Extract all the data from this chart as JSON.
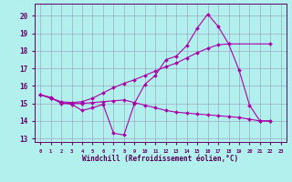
{
  "xlabel": "Windchill (Refroidissement éolien,°C)",
  "xlim": [
    -0.5,
    23.5
  ],
  "ylim": [
    12.8,
    20.7
  ],
  "yticks": [
    13,
    14,
    15,
    16,
    17,
    18,
    19,
    20
  ],
  "xticks": [
    0,
    1,
    2,
    3,
    4,
    5,
    6,
    7,
    8,
    9,
    10,
    11,
    12,
    13,
    14,
    15,
    16,
    17,
    18,
    19,
    20,
    21,
    22,
    23
  ],
  "bg_color": "#b2f0ee",
  "line_color": "#aa00aa",
  "grid_color": "#9999bb",
  "line1_x": [
    0,
    1,
    2,
    3,
    4,
    5,
    6,
    7,
    8,
    9,
    10,
    11,
    12,
    13,
    14,
    15,
    16,
    17,
    18,
    19,
    20,
    21,
    22
  ],
  "line1_y": [
    15.5,
    15.3,
    15.05,
    14.95,
    14.6,
    14.75,
    14.95,
    13.3,
    13.2,
    15.0,
    16.1,
    16.6,
    17.5,
    17.7,
    18.3,
    19.3,
    20.1,
    19.4,
    18.4,
    16.9,
    14.9,
    14.0,
    14.0
  ],
  "line2_x": [
    0,
    1,
    2,
    3,
    4,
    5,
    6,
    7,
    8,
    9,
    10,
    11,
    12,
    13,
    14,
    15,
    16,
    17,
    18,
    22
  ],
  "line2_y": [
    15.5,
    15.3,
    15.1,
    15.05,
    15.1,
    15.3,
    15.6,
    15.9,
    16.15,
    16.35,
    16.6,
    16.85,
    17.1,
    17.3,
    17.6,
    17.9,
    18.15,
    18.35,
    18.4,
    18.4
  ],
  "line3_x": [
    0,
    1,
    2,
    3,
    4,
    5,
    6,
    7,
    8,
    9,
    10,
    11,
    12,
    13,
    14,
    15,
    16,
    17,
    18,
    19,
    20,
    21,
    22
  ],
  "line3_y": [
    15.5,
    15.35,
    15.0,
    15.0,
    15.0,
    15.05,
    15.1,
    15.15,
    15.2,
    15.05,
    14.9,
    14.75,
    14.6,
    14.5,
    14.45,
    14.4,
    14.35,
    14.3,
    14.25,
    14.2,
    14.1,
    14.0,
    14.0
  ]
}
